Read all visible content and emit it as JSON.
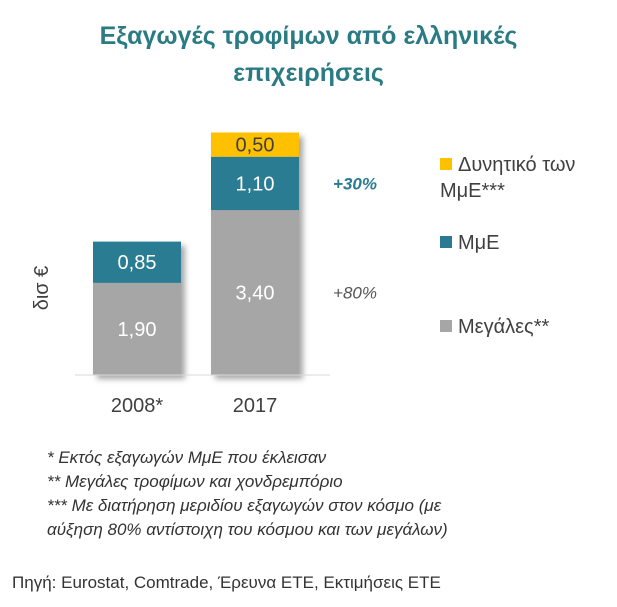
{
  "chart_data": {
    "type": "bar",
    "stacked": true,
    "title_lines": [
      "Εξαγωγές τροφίμων από ελληνικές",
      "επιχειρήσεις"
    ],
    "ylabel": "δισ €",
    "categories": [
      "2008*",
      "2017"
    ],
    "series": [
      {
        "name": "Μεγάλες**",
        "values": [
          1.9,
          3.4
        ],
        "labels": [
          "1,90",
          "3,40"
        ],
        "color": "#a6a6a6"
      },
      {
        "name": "ΜμΕ",
        "values": [
          0.85,
          1.1
        ],
        "labels": [
          "0,85",
          "1,10"
        ],
        "color": "#2a7b92"
      },
      {
        "name": "Δυνητικό των ΜμΕ***",
        "values": [
          0,
          0.5
        ],
        "labels": [
          "",
          "0,50"
        ],
        "color": "#ffc000"
      }
    ],
    "legend_lines": [
      [
        "Δυνητικό των",
        "ΜμΕ***"
      ],
      [
        "ΜμΕ"
      ],
      [
        "Μεγάλες**"
      ]
    ],
    "annotations": [
      {
        "text": "+30%",
        "color": "#2a7b92",
        "series": "ΜμΕ"
      },
      {
        "text": "+80%",
        "color": "#555555",
        "series": "Μεγάλες**"
      }
    ],
    "ylim": [
      0,
      5.0
    ],
    "grid": false,
    "legend_position": "right"
  },
  "notes": [
    "* Εκτός εξαγωγών ΜμΕ που έκλεισαν",
    "** Μεγάλες τροφίμων και χονδρεμπόριο",
    "*** Με διατήρηση μεριδίου εξαγωγών στον κόσμο (με",
    "αύξηση 80% αντίστοιχη του κόσμου και των μεγάλων)"
  ],
  "source": "Πηγή: Eurostat, Comtrade, Έρευνα ΕΤΕ, Εκτιμήσεις ΕΤΕ"
}
